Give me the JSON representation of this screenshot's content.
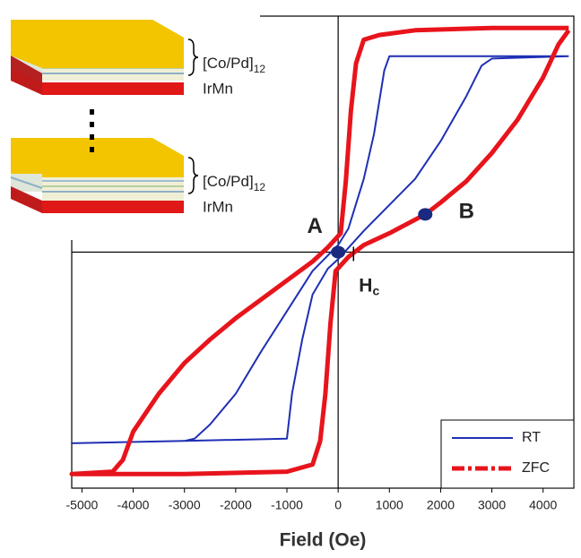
{
  "chart_data": {
    "type": "line",
    "xlabel": "Field (Oe)",
    "xlim": [
      -5200,
      4600
    ],
    "ylim": [
      -1,
      1
    ],
    "xticks": [
      -5000,
      -4000,
      -3000,
      -2000,
      -1000,
      0,
      1000,
      2000,
      3000,
      4000
    ],
    "legend": "lower right",
    "series": [
      {
        "name": "RT",
        "color": "#1f2fb4",
        "x": [
          4500,
          3000,
          2000,
          1000,
          900,
          700,
          500,
          200,
          0,
          -500,
          -1000,
          -1500,
          -2000,
          -2500,
          -2800,
          -3000,
          -5200,
          -3000,
          -1000,
          -900,
          -700,
          -500,
          -200,
          0,
          500,
          1000,
          1500,
          2000,
          2500,
          2800,
          3000,
          4500
        ],
        "values": [
          0.83,
          0.83,
          0.83,
          0.83,
          0.77,
          0.5,
          0.31,
          0.1,
          0.03,
          -0.08,
          -0.25,
          -0.42,
          -0.6,
          -0.73,
          -0.79,
          -0.8,
          -0.81,
          -0.8,
          -0.79,
          -0.6,
          -0.37,
          -0.18,
          -0.07,
          -0.03,
          0.09,
          0.2,
          0.31,
          0.47,
          0.66,
          0.79,
          0.82,
          0.83
        ]
      },
      {
        "name": "ZFC",
        "color": "#e8141c",
        "x": [
          4500,
          3000,
          1500,
          800,
          500,
          350,
          250,
          150,
          50,
          -200,
          -500,
          -1000,
          -1500,
          -2000,
          -2500,
          -3000,
          -3500,
          -4000,
          -4200,
          -4400,
          -5200,
          -3000,
          -1000,
          -500,
          -350,
          -250,
          -150,
          -50,
          200,
          500,
          1000,
          1700,
          2000,
          2500,
          3000,
          3500,
          4000,
          4300,
          4500
        ],
        "values": [
          0.95,
          0.95,
          0.94,
          0.92,
          0.9,
          0.8,
          0.6,
          0.3,
          0.08,
          0.02,
          -0.04,
          -0.12,
          -0.2,
          -0.28,
          -0.37,
          -0.47,
          -0.6,
          -0.76,
          -0.88,
          -0.93,
          -0.94,
          -0.94,
          -0.93,
          -0.9,
          -0.8,
          -0.6,
          -0.3,
          -0.08,
          -0.02,
          0.03,
          0.08,
          0.16,
          0.21,
          0.3,
          0.42,
          0.56,
          0.74,
          0.88,
          0.94
        ]
      }
    ],
    "points": [
      {
        "label": "A",
        "x": 0,
        "y": 0
      },
      {
        "label": "B",
        "x": 1700,
        "y": 0.16
      }
    ],
    "coercivity": {
      "label": "H",
      "subscript": "c",
      "x": 300
    }
  },
  "inset": {
    "stacks": [
      {
        "label": "[Co/Pd]",
        "subscript": "12",
        "base": "IrMn"
      },
      {
        "label": "[Co/Pd]",
        "subscript": "12",
        "base": "IrMn"
      }
    ]
  }
}
